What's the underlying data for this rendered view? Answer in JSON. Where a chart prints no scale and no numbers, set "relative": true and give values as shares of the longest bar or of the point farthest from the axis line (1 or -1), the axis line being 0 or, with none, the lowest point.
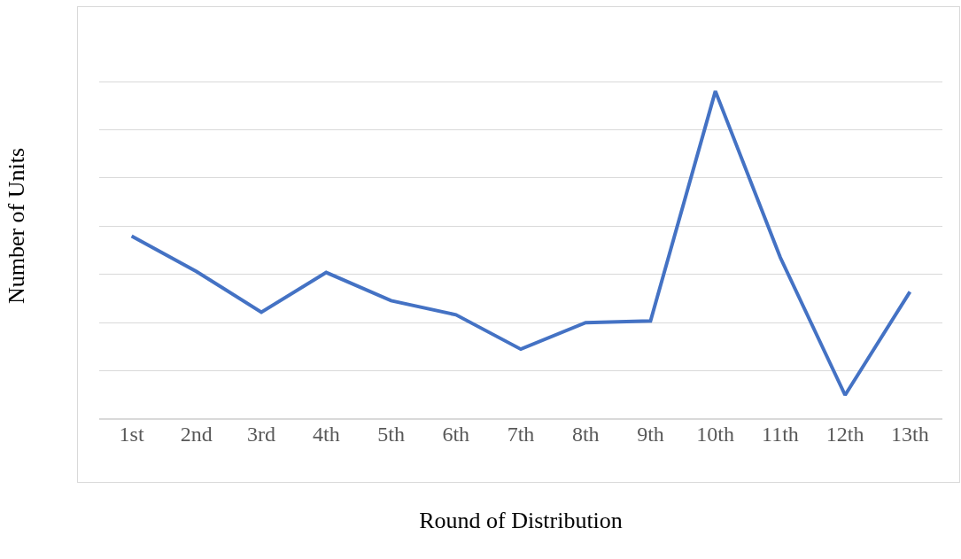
{
  "chart_data": {
    "type": "line",
    "xlabel": "Round of Distribution",
    "ylabel": "Number of Units",
    "categories": [
      "1st",
      "2nd",
      "3rd",
      "4th",
      "5th",
      "6th",
      "7th",
      "8th",
      "9th",
      "10th",
      "11th",
      "12th",
      "13th"
    ],
    "relative": true,
    "grid": "y",
    "marker": "none",
    "line_style": "solid",
    "series": [
      {
        "color": "#4472c4",
        "values": [
          0.558,
          0.45,
          0.326,
          0.447,
          0.361,
          0.318,
          0.213,
          0.294,
          0.299,
          1,
          0.493,
          0.073,
          0.388
        ]
      }
    ]
  }
}
